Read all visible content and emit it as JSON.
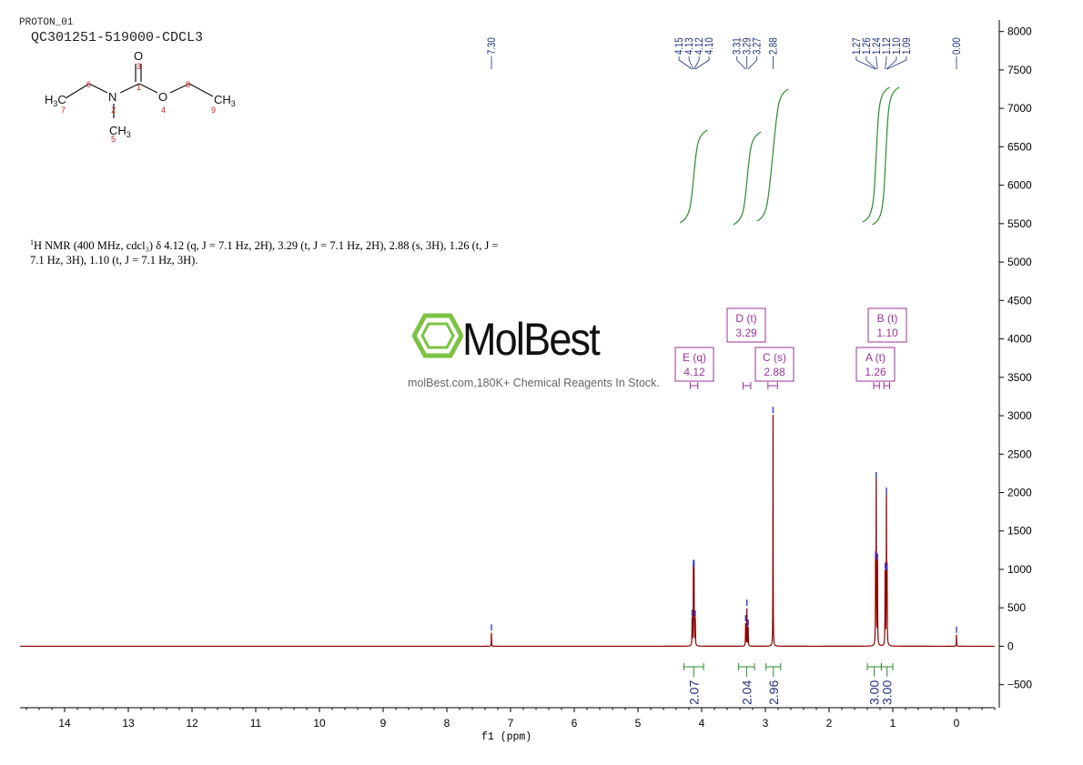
{
  "header": {
    "experiment": "PROTON_01",
    "sample": "QC301251-519000-CDCL3"
  },
  "structure": {
    "atoms": [
      {
        "symbol": "H3C",
        "label": "7"
      },
      {
        "symbol": "",
        "label": "6"
      },
      {
        "symbol": "N",
        "label": "2"
      },
      {
        "symbol": "",
        "label": "1"
      },
      {
        "symbol": "O",
        "label": "3"
      },
      {
        "symbol": "O",
        "label": "4"
      },
      {
        "symbol": "",
        "label": "8"
      },
      {
        "symbol": "CH3",
        "label": "9"
      },
      {
        "symbol": "CH3",
        "label": "5"
      }
    ]
  },
  "nmr_description": {
    "line1_sup": "1",
    "line1": "H NMR (400 MHz, cdcl₃) δ 4.12 (q, J = 7.1 Hz, 2H), 3.29 (t, J = 7.1 Hz, 2H), 2.88 (s, 3H), 1.26 (t, J =",
    "line2": "7.1 Hz, 3H), 1.10 (t, J = 7.1 Hz, 3H)."
  },
  "watermark": {
    "brand": "MolBest",
    "tagline": "molBest.com,180K+ Chemical Reagents In Stock.",
    "color": "#7dc242"
  },
  "colors": {
    "spectrum": "#8b0000",
    "integral": "#2e8b2e",
    "multiplet_box": "#993399",
    "peak_label": "#1f2f7a"
  },
  "chart_data": {
    "type": "line",
    "title": "",
    "xlabel": "f1 (ppm)",
    "ylabel": "",
    "xlim": [
      14.7,
      -0.6
    ],
    "ylim": [
      -800,
      8150
    ],
    "x_ticks": [
      14,
      13,
      12,
      11,
      10,
      9,
      8,
      7,
      6,
      5,
      4,
      3,
      2,
      1,
      0
    ],
    "y_ticks": [
      8000,
      7500,
      7000,
      6500,
      6000,
      5500,
      5000,
      4500,
      4000,
      3500,
      3000,
      2500,
      2000,
      1500,
      1000,
      500,
      0,
      -500
    ],
    "peak_labels": [
      "7.30",
      "4.15",
      "4.13",
      "4.12",
      "4.10",
      "3.31",
      "3.29",
      "3.27",
      "2.88",
      "1.27",
      "1.26",
      "1.24",
      "1.12",
      "1.10",
      "1.09",
      "0.00"
    ],
    "peaks": [
      {
        "ppm": 7.3,
        "height": 180
      },
      {
        "ppm": 4.15,
        "height": 370
      },
      {
        "ppm": 4.13,
        "height": 1020
      },
      {
        "ppm": 4.12,
        "height": 1010
      },
      {
        "ppm": 4.1,
        "height": 360
      },
      {
        "ppm": 3.31,
        "height": 300
      },
      {
        "ppm": 3.29,
        "height": 500
      },
      {
        "ppm": 3.27,
        "height": 240
      },
      {
        "ppm": 2.88,
        "height": 3010
      },
      {
        "ppm": 1.27,
        "height": 1120
      },
      {
        "ppm": 1.26,
        "height": 2160
      },
      {
        "ppm": 1.24,
        "height": 1100
      },
      {
        "ppm": 1.12,
        "height": 980
      },
      {
        "ppm": 1.1,
        "height": 1960
      },
      {
        "ppm": 1.09,
        "height": 960
      },
      {
        "ppm": 0.0,
        "height": 150
      }
    ],
    "multiplets": [
      {
        "letter": "E",
        "mult": "q",
        "shift": "4.12",
        "from": 4.18,
        "to": 4.06
      },
      {
        "letter": "D",
        "mult": "t",
        "shift": "3.29",
        "from": 3.35,
        "to": 3.23
      },
      {
        "letter": "C",
        "mult": "s",
        "shift": "2.88",
        "from": 2.96,
        "to": 2.81
      },
      {
        "letter": "A",
        "mult": "t",
        "shift": "1.26",
        "from": 1.3,
        "to": 1.21
      },
      {
        "letter": "B",
        "mult": "t",
        "shift": "1.10",
        "from": 1.14,
        "to": 1.05
      }
    ],
    "integrals": [
      {
        "value": "2.07",
        "from": 4.28,
        "to": 3.97
      },
      {
        "value": "2.04",
        "from": 3.42,
        "to": 3.17
      },
      {
        "value": "2.96",
        "from": 2.99,
        "to": 2.76
      },
      {
        "value": "3.00",
        "from": 1.4,
        "to": 1.18
      },
      {
        "value": "3.00",
        "from": 1.18,
        "to": 1.0
      }
    ]
  }
}
